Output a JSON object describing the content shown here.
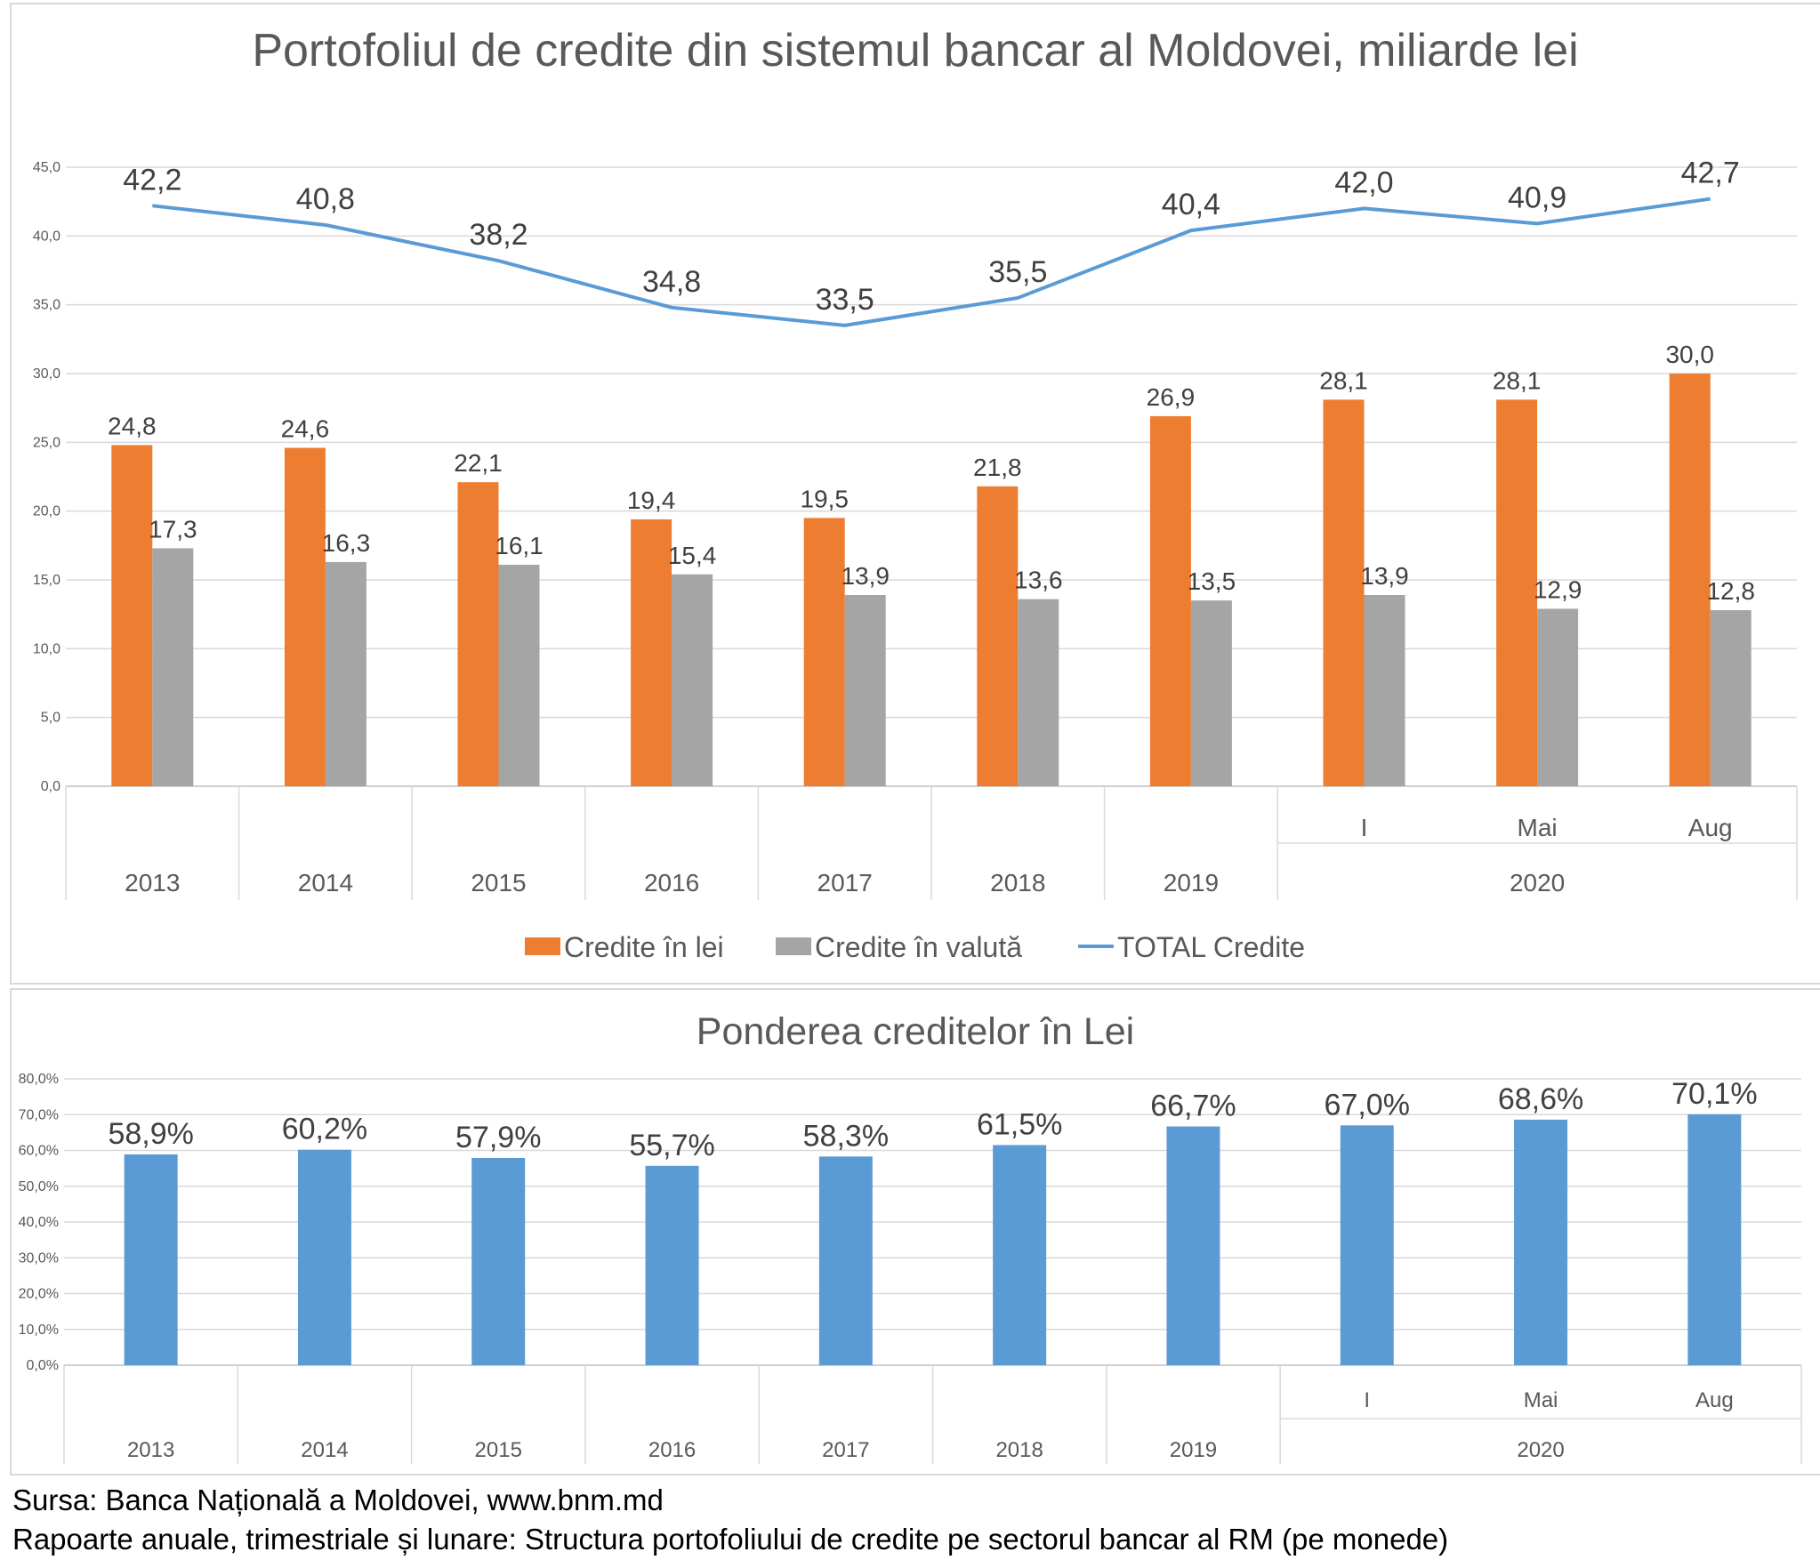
{
  "chart_data": [
    {
      "type": "bar",
      "title": "Portofoliul de credite din sistemul bancar al Moldovei, miliarde lei",
      "xlabel": "",
      "ylabel": "",
      "ylim": [
        0,
        45
      ],
      "y_ticks": [
        "0,0",
        "5,0",
        "10,0",
        "15,0",
        "20,0",
        "25,0",
        "30,0",
        "35,0",
        "40,0",
        "45,0"
      ],
      "grid": true,
      "legend_position": "bottom",
      "categories": [
        "2013",
        "2014",
        "2015",
        "2016",
        "2017",
        "2018",
        "2019",
        "I",
        "Mai",
        "Aug"
      ],
      "group_labels": [
        "2013",
        "2014",
        "2015",
        "2016",
        "2017",
        "2018",
        "2019",
        "2020"
      ],
      "series": [
        {
          "name": "Credite în lei",
          "kind": "bar",
          "color": "#ED7D31",
          "values": [
            24.8,
            24.6,
            22.1,
            19.4,
            19.5,
            21.8,
            26.9,
            28.1,
            28.1,
            30.0
          ],
          "labels": [
            "24,8",
            "24,6",
            "22,1",
            "19,4",
            "19,5",
            "21,8",
            "26,9",
            "28,1",
            "28,1",
            "30,0"
          ]
        },
        {
          "name": "Credite în valută",
          "kind": "bar",
          "color": "#A5A5A5",
          "values": [
            17.3,
            16.3,
            16.1,
            15.4,
            13.9,
            13.6,
            13.5,
            13.9,
            12.9,
            12.8
          ],
          "labels": [
            "17,3",
            "16,3",
            "16,1",
            "15,4",
            "13,9",
            "13,6",
            "13,5",
            "13,9",
            "12,9",
            "12,8"
          ]
        },
        {
          "name": "TOTAL Credite",
          "kind": "line",
          "color": "#5B9BD5",
          "values": [
            42.2,
            40.8,
            38.2,
            34.8,
            33.5,
            35.5,
            40.4,
            42.0,
            40.9,
            42.7
          ],
          "labels": [
            "42,2",
            "40,8",
            "38,2",
            "34,8",
            "33,5",
            "35,5",
            "40,4",
            "42,0",
            "40,9",
            "42,7"
          ]
        }
      ]
    },
    {
      "type": "bar",
      "title": "Ponderea creditelor în Lei",
      "xlabel": "",
      "ylabel": "",
      "ylim": [
        0,
        80
      ],
      "y_ticks": [
        "0,0%",
        "10,0%",
        "20,0%",
        "30,0%",
        "40,0%",
        "50,0%",
        "60,0%",
        "70,0%",
        "80,0%"
      ],
      "grid": true,
      "categories": [
        "2013",
        "2014",
        "2015",
        "2016",
        "2017",
        "2018",
        "2019",
        "I",
        "Mai",
        "Aug"
      ],
      "group_labels": [
        "2013",
        "2014",
        "2015",
        "2016",
        "2017",
        "2018",
        "2019",
        "2020"
      ],
      "series": [
        {
          "name": "",
          "kind": "bar",
          "color": "#5B9BD5",
          "values": [
            58.9,
            60.2,
            57.9,
            55.7,
            58.3,
            61.5,
            66.7,
            67.0,
            68.6,
            70.1
          ],
          "labels": [
            "58,9%",
            "60,2%",
            "57,9%",
            "55,7%",
            "58,3%",
            "61,5%",
            "66,7%",
            "67,0%",
            "68,6%",
            "70,1%"
          ]
        }
      ]
    }
  ],
  "source": {
    "line1": "Sursa: Banca Națională a Moldovei, www.bnm.md",
    "line2": "Rapoarte anuale, trimestriale și lunare: Structura portofoliului de credite pe sectorul bancar al RM (pe monede)"
  }
}
